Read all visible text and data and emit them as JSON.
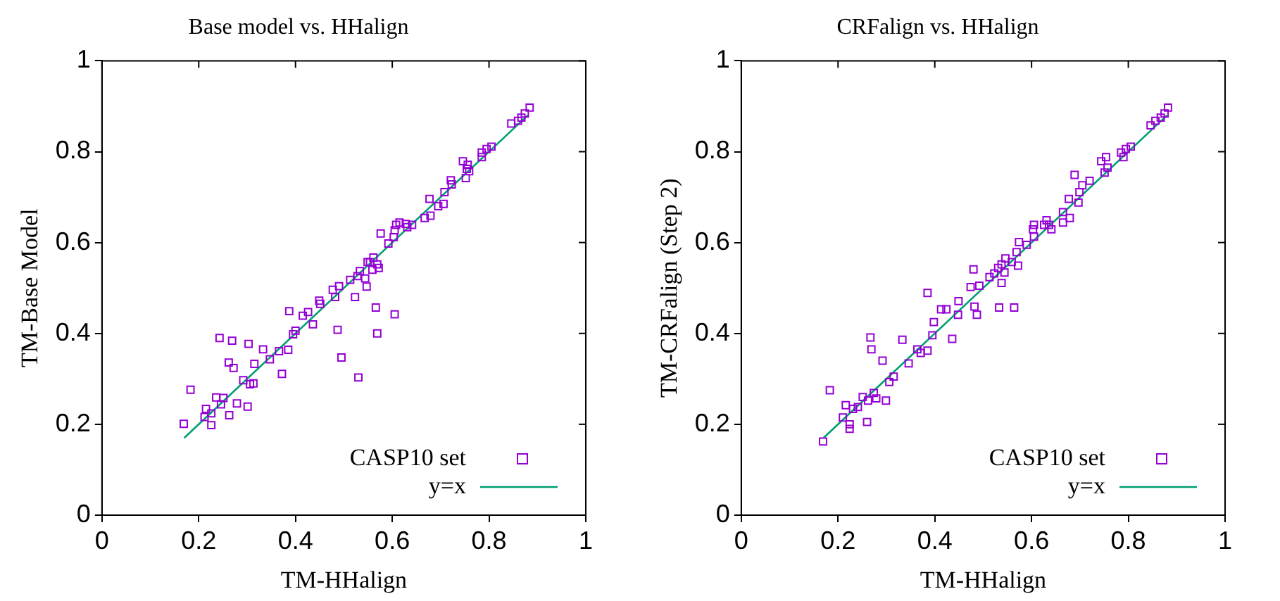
{
  "chart_data": [
    {
      "type": "scatter",
      "title": "Base model vs. HHalign",
      "xlabel": "TM-HHalign",
      "ylabel": "TM-Base Model",
      "xlim": [
        0,
        1
      ],
      "ylim": [
        0,
        1
      ],
      "xticks": [
        0,
        0.2,
        0.4,
        0.6,
        0.8,
        1
      ],
      "yticks": [
        0,
        0.2,
        0.4,
        0.6,
        0.8,
        1
      ],
      "grid": false,
      "legend": "bottom right",
      "series": [
        {
          "name": "CASP10 set",
          "marker": "square",
          "color": "#9400d3",
          "x": [
            0.884,
            0.874,
            0.867,
            0.86,
            0.846,
            0.805,
            0.795,
            0.785,
            0.785,
            0.746,
            0.756,
            0.754,
            0.759,
            0.752,
            0.721,
            0.723,
            0.708,
            0.677,
            0.706,
            0.695,
            0.667,
            0.679,
            0.641,
            0.628,
            0.615,
            0.608,
            0.631,
            0.605,
            0.603,
            0.592,
            0.576,
            0.561,
            0.554,
            0.549,
            0.569,
            0.572,
            0.559,
            0.533,
            0.528,
            0.544,
            0.513,
            0.547,
            0.523,
            0.49,
            0.477,
            0.482,
            0.566,
            0.605,
            0.449,
            0.451,
            0.387,
            0.426,
            0.415,
            0.436,
            0.487,
            0.569,
            0.495,
            0.53,
            0.4,
            0.395,
            0.385,
            0.366,
            0.347,
            0.372,
            0.333,
            0.303,
            0.269,
            0.243,
            0.315,
            0.262,
            0.272,
            0.292,
            0.313,
            0.306,
            0.183,
            0.236,
            0.251,
            0.246,
            0.279,
            0.301,
            0.215,
            0.226,
            0.212,
            0.263,
            0.169,
            0.226
          ],
          "values": [
            0.897,
            0.884,
            0.875,
            0.868,
            0.862,
            0.811,
            0.806,
            0.798,
            0.788,
            0.779,
            0.771,
            0.762,
            0.757,
            0.742,
            0.737,
            0.728,
            0.711,
            0.696,
            0.685,
            0.68,
            0.654,
            0.659,
            0.639,
            0.641,
            0.644,
            0.639,
            0.634,
            0.627,
            0.612,
            0.598,
            0.62,
            0.567,
            0.557,
            0.557,
            0.552,
            0.544,
            0.54,
            0.537,
            0.526,
            0.521,
            0.518,
            0.503,
            0.48,
            0.504,
            0.496,
            0.48,
            0.457,
            0.442,
            0.472,
            0.465,
            0.449,
            0.447,
            0.439,
            0.42,
            0.408,
            0.4,
            0.347,
            0.303,
            0.406,
            0.398,
            0.364,
            0.361,
            0.343,
            0.311,
            0.365,
            0.377,
            0.384,
            0.39,
            0.333,
            0.336,
            0.324,
            0.297,
            0.29,
            0.288,
            0.276,
            0.259,
            0.258,
            0.244,
            0.246,
            0.239,
            0.234,
            0.224,
            0.216,
            0.22,
            0.201,
            0.198
          ]
        },
        {
          "name": "y=x",
          "type": "line",
          "color": "#009e73",
          "x": [
            0.17,
            0.88
          ],
          "values": [
            0.17,
            0.88
          ]
        }
      ]
    },
    {
      "type": "scatter",
      "title": "CRFalign vs. HHalign",
      "xlabel": "TM-HHalign",
      "ylabel": "TM-CRFalign (Step 2)",
      "xlim": [
        0,
        1
      ],
      "ylim": [
        0,
        1
      ],
      "xticks": [
        0,
        0.2,
        0.4,
        0.6,
        0.8,
        1
      ],
      "yticks": [
        0,
        0.2,
        0.4,
        0.6,
        0.8,
        1
      ],
      "grid": false,
      "legend": "bottom right",
      "series": [
        {
          "name": "CASP10 set",
          "marker": "square",
          "color": "#9400d3",
          "x": [
            0.882,
            0.875,
            0.867,
            0.856,
            0.846,
            0.805,
            0.795,
            0.785,
            0.79,
            0.754,
            0.744,
            0.757,
            0.751,
            0.689,
            0.72,
            0.705,
            0.699,
            0.677,
            0.697,
            0.679,
            0.665,
            0.665,
            0.631,
            0.626,
            0.636,
            0.641,
            0.605,
            0.603,
            0.605,
            0.574,
            0.59,
            0.569,
            0.546,
            0.559,
            0.572,
            0.538,
            0.531,
            0.544,
            0.523,
            0.513,
            0.538,
            0.48,
            0.492,
            0.474,
            0.385,
            0.533,
            0.564,
            0.413,
            0.424,
            0.449,
            0.448,
            0.487,
            0.482,
            0.398,
            0.395,
            0.436,
            0.333,
            0.267,
            0.269,
            0.364,
            0.371,
            0.385,
            0.346,
            0.292,
            0.315,
            0.306,
            0.183,
            0.274,
            0.279,
            0.299,
            0.251,
            0.262,
            0.216,
            0.231,
            0.241,
            0.21,
            0.26,
            0.224,
            0.224,
            0.169
          ],
          "values": [
            0.897,
            0.884,
            0.875,
            0.868,
            0.858,
            0.811,
            0.806,
            0.798,
            0.788,
            0.788,
            0.779,
            0.765,
            0.754,
            0.749,
            0.736,
            0.726,
            0.711,
            0.696,
            0.688,
            0.654,
            0.667,
            0.644,
            0.649,
            0.639,
            0.639,
            0.629,
            0.639,
            0.629,
            0.613,
            0.601,
            0.595,
            0.579,
            0.565,
            0.557,
            0.549,
            0.552,
            0.544,
            0.534,
            0.532,
            0.524,
            0.511,
            0.541,
            0.505,
            0.502,
            0.489,
            0.457,
            0.457,
            0.453,
            0.453,
            0.471,
            0.441,
            0.441,
            0.459,
            0.425,
            0.396,
            0.388,
            0.386,
            0.391,
            0.365,
            0.365,
            0.357,
            0.362,
            0.334,
            0.34,
            0.305,
            0.293,
            0.275,
            0.269,
            0.257,
            0.252,
            0.26,
            0.252,
            0.242,
            0.234,
            0.238,
            0.215,
            0.205,
            0.2,
            0.19,
            0.162
          ]
        },
        {
          "name": "y=x",
          "type": "line",
          "color": "#009e73",
          "x": [
            0.17,
            0.88
          ],
          "values": [
            0.17,
            0.88
          ]
        }
      ]
    }
  ]
}
